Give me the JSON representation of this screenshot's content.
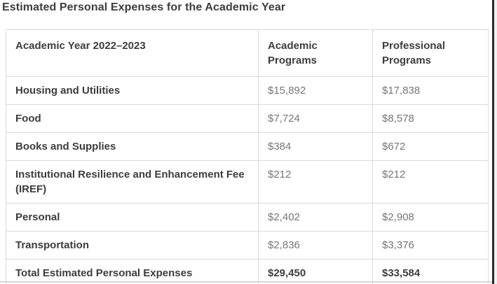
{
  "page": {
    "title": "Estimated Personal Expenses for the Academic Year"
  },
  "table": {
    "columns": [
      "Academic Year 2022–2023",
      "Academic Programs",
      "Professional Programs"
    ],
    "rows": [
      {
        "label": "Housing and Utilities",
        "academic": "$15,892",
        "professional": "$17,838",
        "is_total": false
      },
      {
        "label": "Food",
        "academic": "$7,724",
        "professional": "$8,578",
        "is_total": false
      },
      {
        "label": "Books and Supplies",
        "academic": "$384",
        "professional": "$672",
        "is_total": false
      },
      {
        "label": "Institutional Resilience and Enhancement Fee (IREF)",
        "academic": "$212",
        "professional": "$212",
        "is_total": false
      },
      {
        "label": "Personal",
        "academic": "$2,402",
        "professional": "$2,908",
        "is_total": false
      },
      {
        "label": "Transportation",
        "academic": "$2,836",
        "professional": "$3,376",
        "is_total": false
      },
      {
        "label": "Total Estimated Personal Expenses",
        "academic": "$29,450",
        "professional": "$33,584",
        "is_total": true
      }
    ]
  },
  "colors": {
    "heading_text": "#3d3d3d",
    "value_text": "#767676",
    "table_border": "#d9d9d9",
    "page_divider": "#d6d6d6",
    "window_edge": "#2b2b2b"
  }
}
